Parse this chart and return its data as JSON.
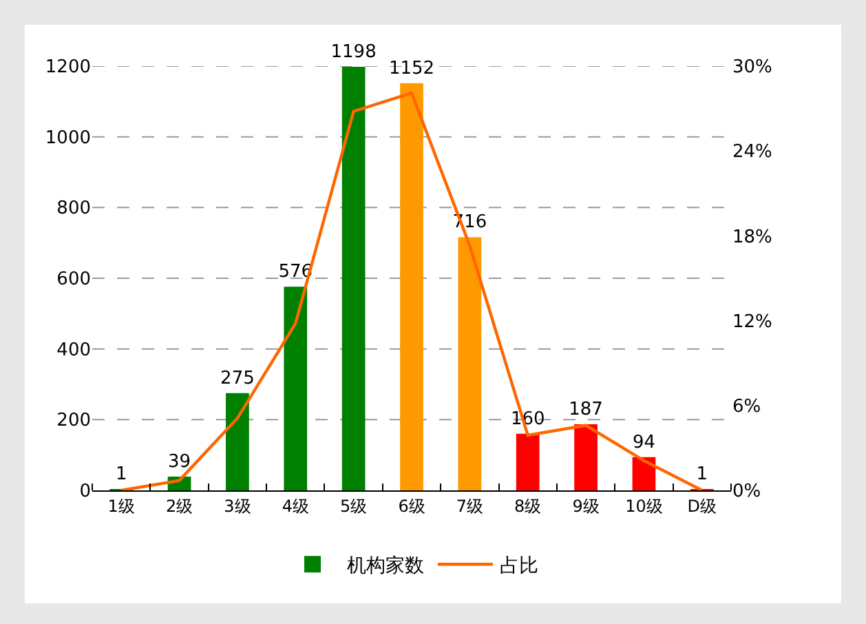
{
  "chart_data": {
    "type": "bar",
    "categories": [
      "1级",
      "2级",
      "3级",
      "4级",
      "5级",
      "6级",
      "7级",
      "8级",
      "9级",
      "10级",
      "D级"
    ],
    "series": [
      {
        "name": "机构家数",
        "data_labels": true,
        "colors": [
          "#008000",
          "#008000",
          "#008000",
          "#008000",
          "#008000",
          "#ff9900",
          "#ff9900",
          "#ff0000",
          "#ff0000",
          "#ff0000",
          "#ff0000"
        ],
        "values": [
          1,
          39,
          275,
          576,
          1198,
          1152,
          716,
          160,
          187,
          94,
          1
        ]
      },
      {
        "name": "占比",
        "type": "line",
        "axis": "y2",
        "color": "#ff6600",
        "values": [
          0,
          0.7,
          5.1,
          11.8,
          26.8,
          28.1,
          17.3,
          3.9,
          4.6,
          2.1,
          0
        ]
      }
    ],
    "ylim": [
      0,
      1200
    ],
    "yticks": [
      0,
      200,
      400,
      600,
      800,
      1000,
      1200
    ],
    "y2lim": [
      0,
      30
    ],
    "y2ticks": [
      {
        "value": 0,
        "label": "0%"
      },
      {
        "value": 6,
        "label": "6%"
      },
      {
        "value": 12,
        "label": "12%"
      },
      {
        "value": 18,
        "label": "18%"
      },
      {
        "value": 24,
        "label": "24%"
      },
      {
        "value": 30,
        "label": "30%"
      }
    ],
    "grid": "y",
    "legend": "bottom",
    "marker": "none",
    "line_style": "solid"
  }
}
